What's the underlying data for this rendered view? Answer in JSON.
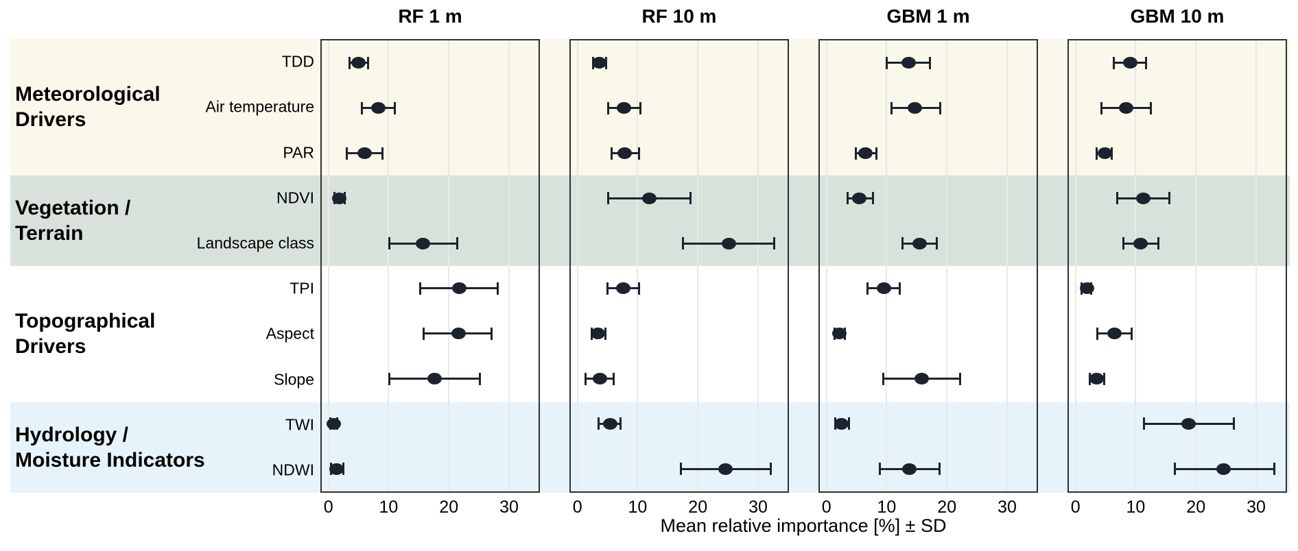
{
  "chart_data": {
    "type": "scatter",
    "subtype": "dot-with-error-bars",
    "orientation": "horizontal",
    "xlabel": "Mean relative importance [%] ± SD",
    "x_ticks": [
      0,
      10,
      20,
      30
    ],
    "x_range": [
      -1.1,
      34.9
    ],
    "grid": "vertical gridlines at each x tick, light gray",
    "legend_position": "none",
    "categories": [
      "TDD",
      "Air temperature",
      "PAR",
      "NDVI",
      "Landscape class",
      "TPI",
      "Aspect",
      "Slope",
      "TWI",
      "NDWI"
    ],
    "groups": [
      {
        "label": "Meteorological Drivers",
        "label_lines": [
          "Meteorological",
          "Drivers"
        ],
        "rows": [
          0,
          1,
          2
        ],
        "band_color": "#faf7eb"
      },
      {
        "label": "Vegetation / Terrain",
        "label_lines": [
          "Vegetation /",
          "Terrain"
        ],
        "rows": [
          3,
          4
        ],
        "band_color": "#d8e2db"
      },
      {
        "label": "Topographical Drivers",
        "label_lines": [
          "Topographical",
          "Drivers"
        ],
        "rows": [
          5,
          6,
          7
        ],
        "band_color": "#ffffff"
      },
      {
        "label": "Hydrology / Moisture Indicators",
        "label_lines": [
          "Hydrology /",
          "Moisture Indicators"
        ],
        "rows": [
          8,
          9
        ],
        "band_color": "#e7f3fb"
      }
    ],
    "panels": [
      {
        "title": "RF 1 m",
        "points": [
          {
            "variable": "TDD",
            "mean": 5.0,
            "lo": 3.4,
            "hi": 6.7
          },
          {
            "variable": "Air temperature",
            "mean": 8.3,
            "lo": 5.5,
            "hi": 11.1
          },
          {
            "variable": "PAR",
            "mean": 6.0,
            "lo": 3.0,
            "hi": 9.0
          },
          {
            "variable": "NDVI",
            "mean": 1.8,
            "lo": 0.9,
            "hi": 2.8
          },
          {
            "variable": "Landscape class",
            "mean": 15.7,
            "lo": 10.1,
            "hi": 21.4
          },
          {
            "variable": "TPI",
            "mean": 21.7,
            "lo": 15.2,
            "hi": 28.2
          },
          {
            "variable": "Aspect",
            "mean": 21.6,
            "lo": 15.8,
            "hi": 27.1
          },
          {
            "variable": "Slope",
            "mean": 17.6,
            "lo": 10.1,
            "hi": 25.2
          },
          {
            "variable": "TWI",
            "mean": 0.9,
            "lo": 0.3,
            "hi": 1.5
          },
          {
            "variable": "NDWI",
            "mean": 1.4,
            "lo": 0.4,
            "hi": 2.5
          }
        ]
      },
      {
        "title": "RF 10 m",
        "points": [
          {
            "variable": "TDD",
            "mean": 3.6,
            "lo": 2.5,
            "hi": 4.8
          },
          {
            "variable": "Air temperature",
            "mean": 7.7,
            "lo": 5.0,
            "hi": 10.5
          },
          {
            "variable": "PAR",
            "mean": 7.8,
            "lo": 5.6,
            "hi": 10.3
          },
          {
            "variable": "NDVI",
            "mean": 11.9,
            "lo": 5.0,
            "hi": 18.8
          },
          {
            "variable": "Landscape class",
            "mean": 25.2,
            "lo": 17.5,
            "hi": 32.7
          },
          {
            "variable": "TPI",
            "mean": 7.6,
            "lo": 4.9,
            "hi": 10.3
          },
          {
            "variable": "Aspect",
            "mean": 3.4,
            "lo": 2.3,
            "hi": 4.7
          },
          {
            "variable": "Slope",
            "mean": 3.7,
            "lo": 1.3,
            "hi": 6.1
          },
          {
            "variable": "TWI",
            "mean": 5.4,
            "lo": 3.5,
            "hi": 7.2
          },
          {
            "variable": "NDWI",
            "mean": 24.6,
            "lo": 17.1,
            "hi": 32.2
          }
        ]
      },
      {
        "title": "GBM 1 m",
        "points": [
          {
            "variable": "TDD",
            "mean": 13.7,
            "lo": 10.0,
            "hi": 17.2
          },
          {
            "variable": "Air temperature",
            "mean": 14.7,
            "lo": 10.7,
            "hi": 18.9
          },
          {
            "variable": "PAR",
            "mean": 6.5,
            "lo": 4.8,
            "hi": 8.3
          },
          {
            "variable": "NDVI",
            "mean": 5.5,
            "lo": 3.4,
            "hi": 7.8
          },
          {
            "variable": "Landscape class",
            "mean": 15.5,
            "lo": 12.6,
            "hi": 18.4
          },
          {
            "variable": "TPI",
            "mean": 9.5,
            "lo": 6.8,
            "hi": 12.2
          },
          {
            "variable": "Aspect",
            "mean": 2.1,
            "lo": 1.3,
            "hi": 3.1
          },
          {
            "variable": "Slope",
            "mean": 15.8,
            "lo": 9.4,
            "hi": 22.3
          },
          {
            "variable": "TWI",
            "mean": 2.5,
            "lo": 1.4,
            "hi": 3.8
          },
          {
            "variable": "NDWI",
            "mean": 13.8,
            "lo": 8.8,
            "hi": 18.8
          }
        ]
      },
      {
        "title": "GBM 10 m",
        "points": [
          {
            "variable": "TDD",
            "mean": 9.1,
            "lo": 6.3,
            "hi": 11.8
          },
          {
            "variable": "Air temperature",
            "mean": 8.4,
            "lo": 4.3,
            "hi": 12.6
          },
          {
            "variable": "PAR",
            "mean": 4.9,
            "lo": 3.5,
            "hi": 6.1
          },
          {
            "variable": "NDVI",
            "mean": 11.3,
            "lo": 6.9,
            "hi": 15.6
          },
          {
            "variable": "Landscape class",
            "mean": 10.8,
            "lo": 7.9,
            "hi": 13.8
          },
          {
            "variable": "TPI",
            "mean": 1.9,
            "lo": 0.9,
            "hi": 2.7
          },
          {
            "variable": "Aspect",
            "mean": 6.5,
            "lo": 3.6,
            "hi": 9.4
          },
          {
            "variable": "Slope",
            "mean": 3.5,
            "lo": 2.3,
            "hi": 4.8
          },
          {
            "variable": "TWI",
            "mean": 18.8,
            "lo": 11.3,
            "hi": 26.3
          },
          {
            "variable": "NDWI",
            "mean": 24.6,
            "lo": 16.4,
            "hi": 33.1
          }
        ]
      }
    ],
    "colors": {
      "point": "#1c232e",
      "error_bar": "#1c232e",
      "panel_border": "#2f2f2f",
      "gridline": "#e9e9e4",
      "text": "#000000",
      "background": "#ffffff"
    }
  }
}
